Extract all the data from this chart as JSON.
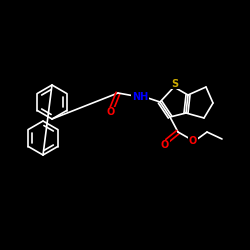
{
  "bg_color": "#000000",
  "bond_color": "#ffffff",
  "atom_colors": {
    "O": "#ff0000",
    "N": "#0000ff",
    "S": "#ccaa00"
  },
  "figsize": [
    2.5,
    2.5
  ],
  "dpi": 100,
  "line_width": 1.2,
  "font_size": 7.0
}
